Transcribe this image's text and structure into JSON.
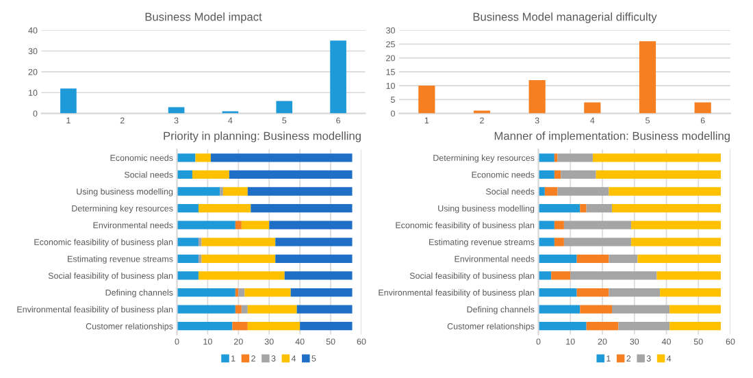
{
  "chart_data": [
    {
      "type": "bar",
      "title": "Business Model impact",
      "categories": [
        "1",
        "2",
        "3",
        "4",
        "5",
        "6"
      ],
      "values": [
        12,
        0,
        3,
        1,
        6,
        35
      ],
      "color": "#1e9ad8",
      "ylim": [
        0,
        40
      ],
      "yticks": [
        0,
        10,
        20,
        30,
        40
      ],
      "grid": "y"
    },
    {
      "type": "bar",
      "title": "Business Model managerial difficulty",
      "categories": [
        "1",
        "2",
        "3",
        "4",
        "5",
        "6"
      ],
      "values": [
        10,
        1,
        12,
        4,
        26,
        4
      ],
      "color": "#f57f21",
      "ylim": [
        0,
        30
      ],
      "yticks": [
        0,
        5,
        10,
        15,
        20,
        25,
        30
      ],
      "grid": "y"
    },
    {
      "type": "bar",
      "title": "Priority in planning: Business modelling",
      "orientation": "horizontal",
      "stacked": true,
      "legend": "bottom",
      "grid": "x",
      "xlim": [
        0,
        60
      ],
      "xticks": [
        0,
        10,
        20,
        30,
        40,
        50,
        60
      ],
      "categories": [
        "Economic needs",
        "Social needs",
        "Using business modelling",
        "Determining key resources",
        "Environmental needs",
        "Economic feasibility of business plan",
        "Estimating revenue streams",
        "Social feasibility of business plan",
        "Defining channels",
        "Environmental feasibility of business plan",
        "Customer relationships"
      ],
      "series": [
        {
          "name": "1",
          "color": "#1e9ad8",
          "values": [
            6,
            5,
            14,
            7,
            19,
            7,
            7,
            7,
            19,
            19,
            18
          ]
        },
        {
          "name": "2",
          "color": "#f57f21",
          "values": [
            0,
            0,
            0,
            0,
            2,
            0,
            0,
            0,
            1,
            2,
            5
          ]
        },
        {
          "name": "3",
          "color": "#a5a5a5",
          "values": [
            0,
            0,
            1,
            0,
            0,
            1,
            1,
            0,
            2,
            2,
            0
          ]
        },
        {
          "name": "4",
          "color": "#ffc000",
          "values": [
            5,
            12,
            8,
            17,
            9,
            24,
            24,
            28,
            15,
            16,
            17
          ]
        },
        {
          "name": "5",
          "color": "#1f6fc6",
          "values": [
            46,
            40,
            34,
            33,
            27,
            25,
            25,
            22,
            20,
            18,
            17
          ]
        }
      ]
    },
    {
      "type": "bar",
      "title": "Manner of implementation: Business modelling",
      "orientation": "horizontal",
      "stacked": true,
      "legend": "bottom",
      "grid": "x",
      "xlim": [
        0,
        60
      ],
      "xticks": [
        0,
        10,
        20,
        30,
        40,
        50,
        60
      ],
      "categories": [
        "Determining key resources",
        "Economic needs",
        "Social needs",
        "Using business modelling",
        "Economic feasibility of business plan",
        "Estimating revenue streams",
        "Environmental needs",
        "Social feasibility of business plan",
        "Environmental feasibility of business plan",
        "Defining channels",
        "Customer relationships"
      ],
      "series": [
        {
          "name": "1",
          "color": "#1e9ad8",
          "values": [
            5,
            5,
            2,
            13,
            5,
            5,
            12,
            4,
            12,
            13,
            15
          ]
        },
        {
          "name": "2",
          "color": "#f57f21",
          "values": [
            1,
            2,
            4,
            2,
            3,
            3,
            10,
            6,
            10,
            10,
            10
          ]
        },
        {
          "name": "3",
          "color": "#a5a5a5",
          "values": [
            11,
            11,
            16,
            8,
            21,
            21,
            9,
            27,
            16,
            18,
            16
          ]
        },
        {
          "name": "4",
          "color": "#ffc000",
          "values": [
            40,
            39,
            35,
            34,
            28,
            28,
            26,
            20,
            19,
            16,
            16
          ]
        }
      ]
    }
  ]
}
